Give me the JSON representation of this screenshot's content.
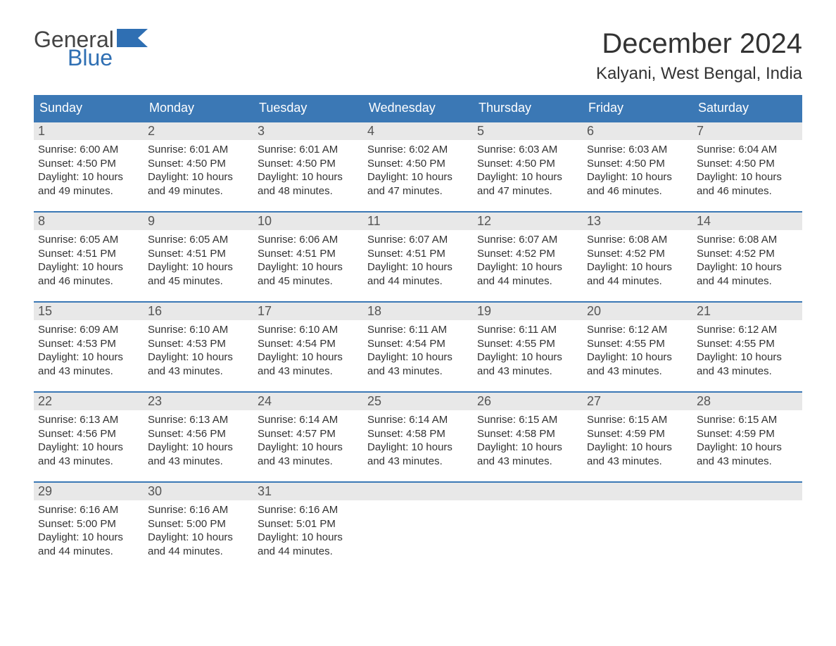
{
  "logo": {
    "top_text": "General",
    "bottom_text": "Blue",
    "text_color_top": "#444444",
    "text_color_bottom": "#2f6fb3",
    "flag_color": "#2f6fb3"
  },
  "header": {
    "month_title": "December 2024",
    "location": "Kalyani, West Bengal, India",
    "title_fontsize": 40,
    "location_fontsize": 24
  },
  "colors": {
    "header_bar_bg": "#3b78b5",
    "header_bar_text": "#ffffff",
    "week_divider": "#3b78b5",
    "daynum_bg": "#e8e8e8",
    "daynum_text": "#555555",
    "body_text": "#333333",
    "page_bg": "#ffffff"
  },
  "fontsizes": {
    "weekday": 18,
    "daynum": 18,
    "body": 15
  },
  "weekdays": [
    "Sunday",
    "Monday",
    "Tuesday",
    "Wednesday",
    "Thursday",
    "Friday",
    "Saturday"
  ],
  "weeks": [
    [
      {
        "n": "1",
        "sunrise": "Sunrise: 6:00 AM",
        "sunset": "Sunset: 4:50 PM",
        "d1": "Daylight: 10 hours",
        "d2": "and 49 minutes."
      },
      {
        "n": "2",
        "sunrise": "Sunrise: 6:01 AM",
        "sunset": "Sunset: 4:50 PM",
        "d1": "Daylight: 10 hours",
        "d2": "and 49 minutes."
      },
      {
        "n": "3",
        "sunrise": "Sunrise: 6:01 AM",
        "sunset": "Sunset: 4:50 PM",
        "d1": "Daylight: 10 hours",
        "d2": "and 48 minutes."
      },
      {
        "n": "4",
        "sunrise": "Sunrise: 6:02 AM",
        "sunset": "Sunset: 4:50 PM",
        "d1": "Daylight: 10 hours",
        "d2": "and 47 minutes."
      },
      {
        "n": "5",
        "sunrise": "Sunrise: 6:03 AM",
        "sunset": "Sunset: 4:50 PM",
        "d1": "Daylight: 10 hours",
        "d2": "and 47 minutes."
      },
      {
        "n": "6",
        "sunrise": "Sunrise: 6:03 AM",
        "sunset": "Sunset: 4:50 PM",
        "d1": "Daylight: 10 hours",
        "d2": "and 46 minutes."
      },
      {
        "n": "7",
        "sunrise": "Sunrise: 6:04 AM",
        "sunset": "Sunset: 4:50 PM",
        "d1": "Daylight: 10 hours",
        "d2": "and 46 minutes."
      }
    ],
    [
      {
        "n": "8",
        "sunrise": "Sunrise: 6:05 AM",
        "sunset": "Sunset: 4:51 PM",
        "d1": "Daylight: 10 hours",
        "d2": "and 46 minutes."
      },
      {
        "n": "9",
        "sunrise": "Sunrise: 6:05 AM",
        "sunset": "Sunset: 4:51 PM",
        "d1": "Daylight: 10 hours",
        "d2": "and 45 minutes."
      },
      {
        "n": "10",
        "sunrise": "Sunrise: 6:06 AM",
        "sunset": "Sunset: 4:51 PM",
        "d1": "Daylight: 10 hours",
        "d2": "and 45 minutes."
      },
      {
        "n": "11",
        "sunrise": "Sunrise: 6:07 AM",
        "sunset": "Sunset: 4:51 PM",
        "d1": "Daylight: 10 hours",
        "d2": "and 44 minutes."
      },
      {
        "n": "12",
        "sunrise": "Sunrise: 6:07 AM",
        "sunset": "Sunset: 4:52 PM",
        "d1": "Daylight: 10 hours",
        "d2": "and 44 minutes."
      },
      {
        "n": "13",
        "sunrise": "Sunrise: 6:08 AM",
        "sunset": "Sunset: 4:52 PM",
        "d1": "Daylight: 10 hours",
        "d2": "and 44 minutes."
      },
      {
        "n": "14",
        "sunrise": "Sunrise: 6:08 AM",
        "sunset": "Sunset: 4:52 PM",
        "d1": "Daylight: 10 hours",
        "d2": "and 44 minutes."
      }
    ],
    [
      {
        "n": "15",
        "sunrise": "Sunrise: 6:09 AM",
        "sunset": "Sunset: 4:53 PM",
        "d1": "Daylight: 10 hours",
        "d2": "and 43 minutes."
      },
      {
        "n": "16",
        "sunrise": "Sunrise: 6:10 AM",
        "sunset": "Sunset: 4:53 PM",
        "d1": "Daylight: 10 hours",
        "d2": "and 43 minutes."
      },
      {
        "n": "17",
        "sunrise": "Sunrise: 6:10 AM",
        "sunset": "Sunset: 4:54 PM",
        "d1": "Daylight: 10 hours",
        "d2": "and 43 minutes."
      },
      {
        "n": "18",
        "sunrise": "Sunrise: 6:11 AM",
        "sunset": "Sunset: 4:54 PM",
        "d1": "Daylight: 10 hours",
        "d2": "and 43 minutes."
      },
      {
        "n": "19",
        "sunrise": "Sunrise: 6:11 AM",
        "sunset": "Sunset: 4:55 PM",
        "d1": "Daylight: 10 hours",
        "d2": "and 43 minutes."
      },
      {
        "n": "20",
        "sunrise": "Sunrise: 6:12 AM",
        "sunset": "Sunset: 4:55 PM",
        "d1": "Daylight: 10 hours",
        "d2": "and 43 minutes."
      },
      {
        "n": "21",
        "sunrise": "Sunrise: 6:12 AM",
        "sunset": "Sunset: 4:55 PM",
        "d1": "Daylight: 10 hours",
        "d2": "and 43 minutes."
      }
    ],
    [
      {
        "n": "22",
        "sunrise": "Sunrise: 6:13 AM",
        "sunset": "Sunset: 4:56 PM",
        "d1": "Daylight: 10 hours",
        "d2": "and 43 minutes."
      },
      {
        "n": "23",
        "sunrise": "Sunrise: 6:13 AM",
        "sunset": "Sunset: 4:56 PM",
        "d1": "Daylight: 10 hours",
        "d2": "and 43 minutes."
      },
      {
        "n": "24",
        "sunrise": "Sunrise: 6:14 AM",
        "sunset": "Sunset: 4:57 PM",
        "d1": "Daylight: 10 hours",
        "d2": "and 43 minutes."
      },
      {
        "n": "25",
        "sunrise": "Sunrise: 6:14 AM",
        "sunset": "Sunset: 4:58 PM",
        "d1": "Daylight: 10 hours",
        "d2": "and 43 minutes."
      },
      {
        "n": "26",
        "sunrise": "Sunrise: 6:15 AM",
        "sunset": "Sunset: 4:58 PM",
        "d1": "Daylight: 10 hours",
        "d2": "and 43 minutes."
      },
      {
        "n": "27",
        "sunrise": "Sunrise: 6:15 AM",
        "sunset": "Sunset: 4:59 PM",
        "d1": "Daylight: 10 hours",
        "d2": "and 43 minutes."
      },
      {
        "n": "28",
        "sunrise": "Sunrise: 6:15 AM",
        "sunset": "Sunset: 4:59 PM",
        "d1": "Daylight: 10 hours",
        "d2": "and 43 minutes."
      }
    ],
    [
      {
        "n": "29",
        "sunrise": "Sunrise: 6:16 AM",
        "sunset": "Sunset: 5:00 PM",
        "d1": "Daylight: 10 hours",
        "d2": "and 44 minutes."
      },
      {
        "n": "30",
        "sunrise": "Sunrise: 6:16 AM",
        "sunset": "Sunset: 5:00 PM",
        "d1": "Daylight: 10 hours",
        "d2": "and 44 minutes."
      },
      {
        "n": "31",
        "sunrise": "Sunrise: 6:16 AM",
        "sunset": "Sunset: 5:01 PM",
        "d1": "Daylight: 10 hours",
        "d2": "and 44 minutes."
      },
      {
        "empty": true
      },
      {
        "empty": true
      },
      {
        "empty": true
      },
      {
        "empty": true
      }
    ]
  ]
}
